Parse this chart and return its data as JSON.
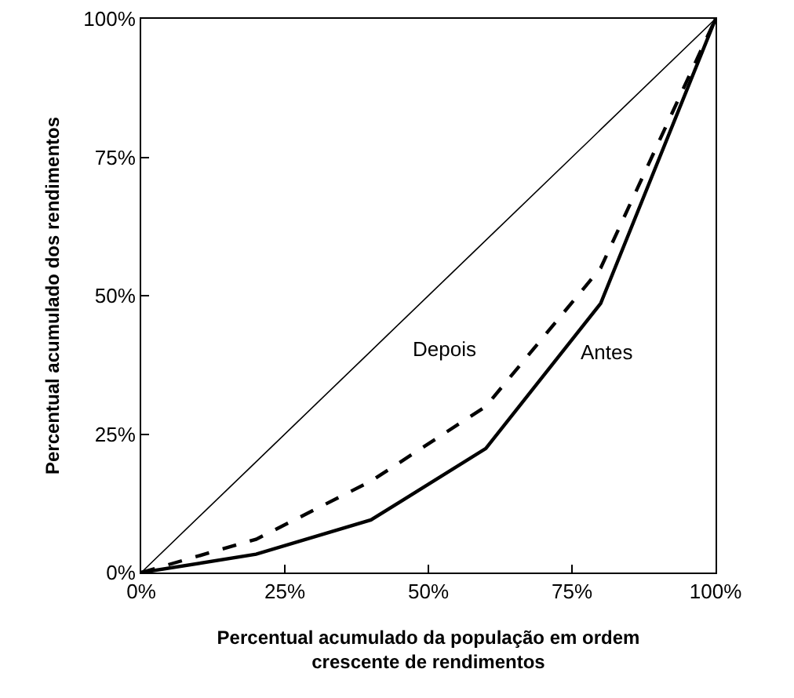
{
  "chart_data": {
    "type": "line",
    "xlabel": "Percentual acumulado da população em ordem crescente de rendimentos",
    "ylabel": "Percentual acumulado dos rendimentos",
    "x": [
      0,
      20,
      40,
      60,
      80,
      100
    ],
    "series": [
      {
        "color": "#000000",
        "values": [
          0,
          20,
          40,
          60,
          80,
          100
        ],
        "line_style": "solid"
      },
      {
        "name": "Antes",
        "color": "#000000",
        "values": [
          0,
          3.3,
          9.5,
          22.4,
          48.6,
          100
        ],
        "line_style": "solid"
      },
      {
        "name": "Depois",
        "color": "#000000",
        "values": [
          0,
          6,
          16.5,
          30,
          55,
          100
        ],
        "line_style": "dashed"
      }
    ],
    "xlim": [
      0,
      100
    ],
    "ylim": [
      0,
      100
    ],
    "xticks": [
      {
        "value": 0,
        "label": "0%"
      },
      {
        "value": 25,
        "label": "25%"
      },
      {
        "value": 50,
        "label": "50%"
      },
      {
        "value": 75,
        "label": "75%"
      },
      {
        "value": 100,
        "label": "100%"
      }
    ],
    "yticks": [
      {
        "value": 0,
        "label": "0%"
      },
      {
        "value": 25,
        "label": "25%"
      },
      {
        "value": 50,
        "label": "50%"
      },
      {
        "value": 75,
        "label": "75%"
      },
      {
        "value": 100,
        "label": "100%"
      }
    ],
    "grid": false,
    "legend": false,
    "marker": "none"
  }
}
